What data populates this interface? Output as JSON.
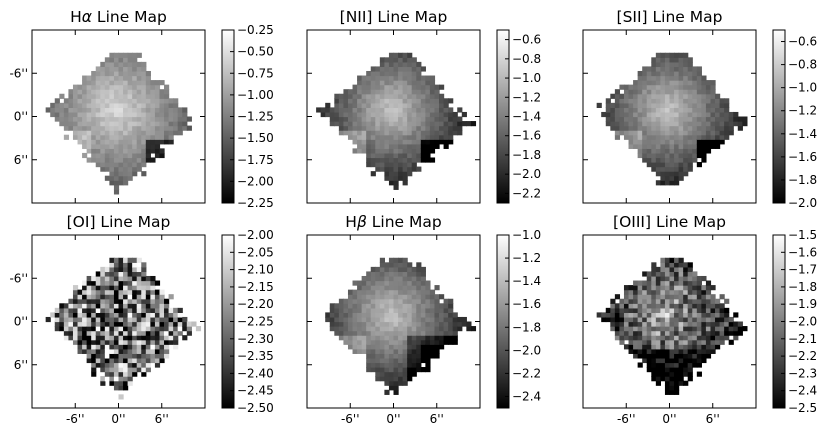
{
  "chart_data": [
    {
      "type": "heatmap",
      "title_main": "H",
      "title_greek": "α",
      "title_rest": " Line Map",
      "xticks": [
        "-6''",
        "0''",
        "6''"
      ],
      "yticks": [
        "6''",
        "0''",
        "-6''"
      ],
      "tick_values": [
        -6,
        0,
        6
      ],
      "map_range": [
        -12,
        12
      ],
      "colorbar": {
        "vmin": -2.25,
        "vmax": -0.25,
        "ticks": [
          -0.25,
          -0.5,
          -0.75,
          -1.0,
          -1.25,
          -1.5,
          -1.75,
          -2.0,
          -2.25
        ],
        "labels": [
          "−0.25",
          "−0.50",
          "−0.75",
          "−1.00",
          "−1.25",
          "−1.50",
          "−1.75",
          "−2.00",
          "−2.25"
        ]
      }
    },
    {
      "type": "heatmap",
      "title_main": "[NII]",
      "title_greek": "",
      "title_rest": " Line Map",
      "xticks": [
        "-6''",
        "0''",
        "6''"
      ],
      "yticks": [
        "6''",
        "0''",
        "-6''"
      ],
      "tick_values": [
        -6,
        0,
        6
      ],
      "map_range": [
        -12,
        12
      ],
      "colorbar": {
        "vmin": -2.3,
        "vmax": -0.5,
        "ticks": [
          -0.6,
          -0.8,
          -1.0,
          -1.2,
          -1.4,
          -1.6,
          -1.8,
          -2.0,
          -2.2
        ],
        "labels": [
          "−0.6",
          "−0.8",
          "−1.0",
          "−1.2",
          "−1.4",
          "−1.6",
          "−1.8",
          "−2.0",
          "−2.2"
        ]
      }
    },
    {
      "type": "heatmap",
      "title_main": "[SII]",
      "title_greek": "",
      "title_rest": " Line Map",
      "xticks": [
        "-6''",
        "0''",
        "6''"
      ],
      "yticks": [
        "6''",
        "0''",
        "-6''"
      ],
      "tick_values": [
        -6,
        0,
        6
      ],
      "map_range": [
        -12,
        12
      ],
      "colorbar": {
        "vmin": -2.0,
        "vmax": -0.5,
        "ticks": [
          -0.6,
          -0.8,
          -1.0,
          -1.2,
          -1.4,
          -1.6,
          -1.8,
          -2.0
        ],
        "labels": [
          "−0.6",
          "−0.8",
          "−1.0",
          "−1.2",
          "−1.4",
          "−1.6",
          "−1.8",
          "−2.0"
        ]
      }
    },
    {
      "type": "heatmap",
      "title_main": "[OI]",
      "title_greek": "",
      "title_rest": " Line Map",
      "xticks": [
        "-6''",
        "0''",
        "6''"
      ],
      "yticks": [
        "6''",
        "0''",
        "-6''"
      ],
      "tick_values": [
        -6,
        0,
        6
      ],
      "map_range": [
        -12,
        12
      ],
      "colorbar": {
        "vmin": -2.5,
        "vmax": -2.0,
        "ticks": [
          -2.0,
          -2.05,
          -2.1,
          -2.15,
          -2.2,
          -2.25,
          -2.3,
          -2.35,
          -2.4,
          -2.45,
          -2.5
        ],
        "labels": [
          "−2.00",
          "−2.05",
          "−2.10",
          "−2.15",
          "−2.20",
          "−2.25",
          "−2.30",
          "−2.35",
          "−2.40",
          "−2.45",
          "−2.50"
        ]
      }
    },
    {
      "type": "heatmap",
      "title_main": "H",
      "title_greek": "β",
      "title_rest": " Line Map",
      "xticks": [
        "-6''",
        "0''",
        "6''"
      ],
      "yticks": [
        "6''",
        "0''",
        "-6''"
      ],
      "tick_values": [
        -6,
        0,
        6
      ],
      "map_range": [
        -12,
        12
      ],
      "colorbar": {
        "vmin": -2.5,
        "vmax": -1.0,
        "ticks": [
          -1.0,
          -1.2,
          -1.4,
          -1.6,
          -1.8,
          -2.0,
          -2.2,
          -2.4
        ],
        "labels": [
          "−1.0",
          "−1.2",
          "−1.4",
          "−1.6",
          "−1.8",
          "−2.0",
          "−2.2",
          "−2.4"
        ]
      }
    },
    {
      "type": "heatmap",
      "title_main": "[OIII]",
      "title_greek": "",
      "title_rest": " Line Map",
      "xticks": [
        "-6''",
        "0''",
        "6''"
      ],
      "yticks": [
        "6''",
        "0''",
        "-6''"
      ],
      "tick_values": [
        -6,
        0,
        6
      ],
      "map_range": [
        -12,
        12
      ],
      "colorbar": {
        "vmin": -2.5,
        "vmax": -1.5,
        "ticks": [
          -1.5,
          -1.6,
          -1.7,
          -1.8,
          -1.9,
          -2.0,
          -2.1,
          -2.2,
          -2.3,
          -2.4,
          -2.5
        ],
        "labels": [
          "−1.5",
          "−1.6",
          "−1.7",
          "−1.8",
          "−1.9",
          "−2.0",
          "−2.1",
          "−2.2",
          "−2.3",
          "−2.4",
          "−2.5"
        ]
      }
    }
  ]
}
